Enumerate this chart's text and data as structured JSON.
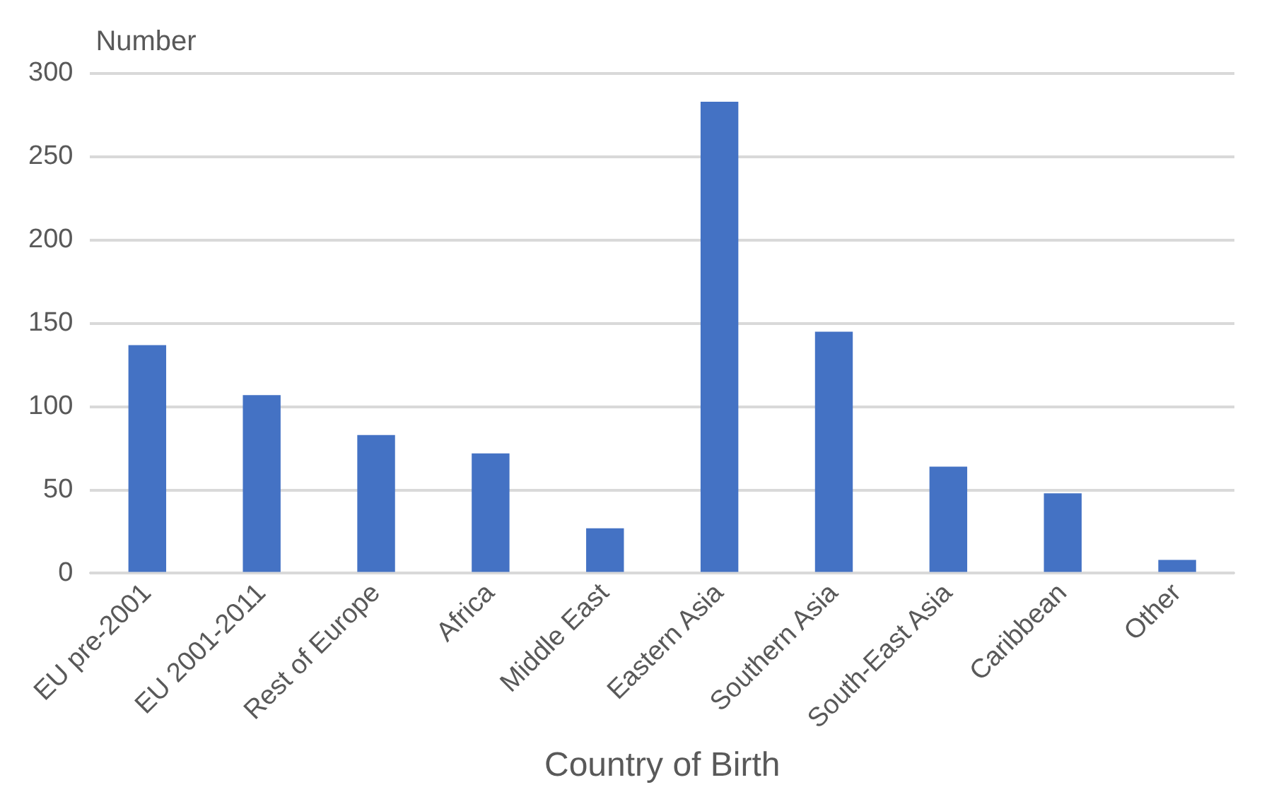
{
  "chart_data": {
    "type": "bar",
    "categories": [
      "EU pre-2001",
      "EU 2001-2011",
      "Rest of Europe",
      "Africa",
      "Middle East",
      "Eastern Asia",
      "Southern Asia",
      "South-East Asia",
      "Caribbean",
      "Other"
    ],
    "values": [
      137,
      107,
      83,
      72,
      27,
      283,
      145,
      64,
      48,
      8
    ],
    "color": "#4472c4",
    "xlabel": "Country of Birth",
    "ylabel": "Number",
    "ylim": [
      0,
      300
    ],
    "yticks": [
      0,
      50,
      100,
      150,
      200,
      250,
      300
    ],
    "grid": "y"
  }
}
